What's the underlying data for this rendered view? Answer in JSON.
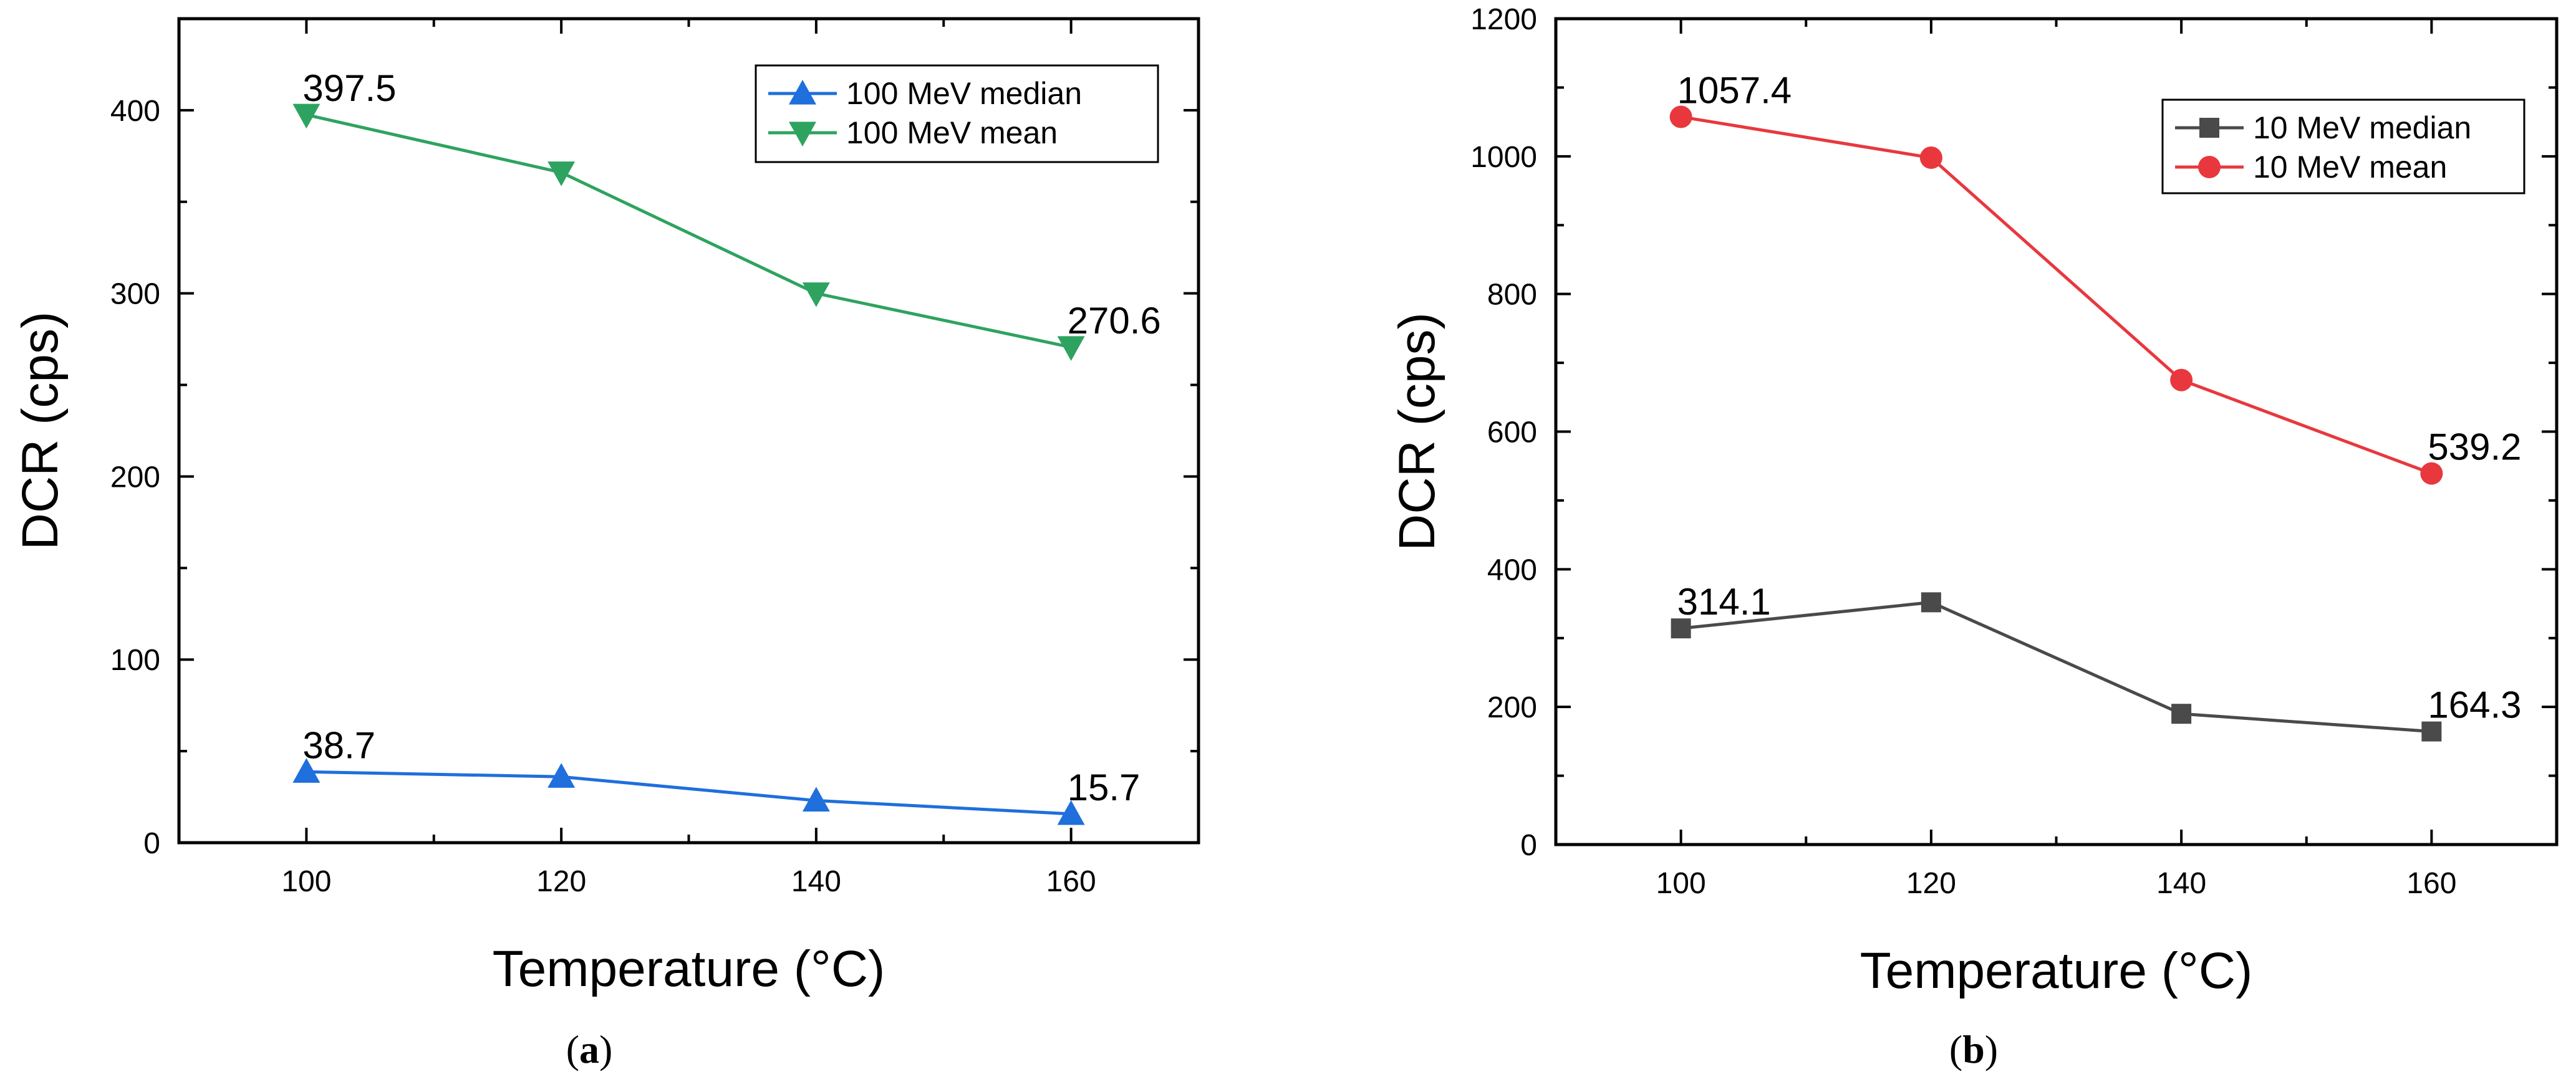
{
  "chart_data": [
    {
      "type": "line",
      "caption_letter": "a",
      "xlabel": "Temperature (°C)",
      "ylabel": "DCR (cps)",
      "xlim": [
        90,
        170
      ],
      "ylim": [
        0,
        450
      ],
      "x_ticks": [
        100,
        120,
        140,
        160
      ],
      "y_ticks": [
        0,
        100,
        200,
        300,
        400
      ],
      "legend_position": "top-right",
      "x": [
        100,
        120,
        140,
        160
      ],
      "series": [
        {
          "name": "100 MeV median",
          "values": [
            38.7,
            36,
            23,
            15.7
          ],
          "color": "#1f6fdc",
          "marker": "triangle-up",
          "labels": [
            {
              "index": 0,
              "text": "38.7"
            },
            {
              "index": 3,
              "text": "15.7"
            }
          ]
        },
        {
          "name": "100 MeV mean",
          "values": [
            397.5,
            366,
            300,
            270.6
          ],
          "color": "#2ea35f",
          "marker": "triangle-down",
          "labels": [
            {
              "index": 0,
              "text": "397.5"
            },
            {
              "index": 3,
              "text": "270.6"
            }
          ]
        }
      ]
    },
    {
      "type": "line",
      "caption_letter": "b",
      "xlabel": "Temperature (°C)",
      "ylabel": "DCR (cps)",
      "xlim": [
        90,
        170
      ],
      "ylim": [
        0,
        1200
      ],
      "x_ticks": [
        100,
        120,
        140,
        160
      ],
      "y_ticks": [
        0,
        200,
        400,
        600,
        800,
        1000,
        1200
      ],
      "legend_position": "top-right",
      "x": [
        100,
        120,
        140,
        160
      ],
      "series": [
        {
          "name": "10 MeV median",
          "values": [
            314.1,
            352,
            190,
            164.3
          ],
          "color": "#4a4a4a",
          "marker": "square",
          "labels": [
            {
              "index": 0,
              "text": "314.1"
            },
            {
              "index": 3,
              "text": "164.3"
            }
          ]
        },
        {
          "name": "10 MeV mean",
          "values": [
            1057.4,
            998,
            675,
            539.2
          ],
          "color": "#e8383d",
          "marker": "circle",
          "labels": [
            {
              "index": 0,
              "text": "1057.4"
            },
            {
              "index": 3,
              "text": "539.2"
            }
          ]
        }
      ]
    }
  ]
}
